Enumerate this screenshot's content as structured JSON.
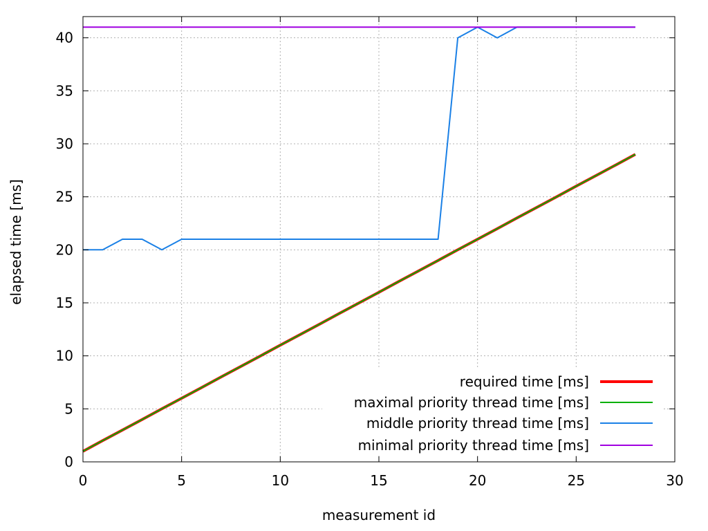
{
  "chart_data": {
    "type": "line",
    "title": "",
    "xlabel": "measurement id",
    "ylabel": "elapsed time [ms]",
    "xlim": [
      0,
      30
    ],
    "ylim": [
      0,
      42
    ],
    "xticks": [
      0,
      5,
      10,
      15,
      20,
      25,
      30
    ],
    "yticks": [
      0,
      5,
      10,
      15,
      20,
      25,
      30,
      35,
      40
    ],
    "grid": true,
    "legend_position": "bottom-right",
    "x": [
      0,
      1,
      2,
      3,
      4,
      5,
      6,
      7,
      8,
      9,
      10,
      11,
      12,
      13,
      14,
      15,
      16,
      17,
      18,
      19,
      20,
      21,
      22,
      23,
      24,
      25,
      26,
      27,
      28
    ],
    "series": [
      {
        "name": "required time [ms]",
        "color": "#ff0000",
        "values": [
          1,
          2,
          3,
          4,
          5,
          6,
          7,
          8,
          9,
          10,
          11,
          12,
          13,
          14,
          15,
          16,
          17,
          18,
          19,
          20,
          21,
          22,
          23,
          24,
          25,
          26,
          27,
          28,
          29
        ]
      },
      {
        "name": "maximal priority thread time [ms]",
        "color": "#00b000",
        "values": [
          1,
          2,
          3,
          4,
          5,
          6,
          7,
          8,
          9,
          10,
          11,
          12,
          13,
          14,
          15,
          16,
          17,
          18,
          19,
          20,
          21,
          22,
          23,
          24,
          25,
          26,
          27,
          28,
          29
        ]
      },
      {
        "name": "middle priority thread time [ms]",
        "color": "#1a80e6",
        "values": [
          20,
          20,
          21,
          21,
          20,
          21,
          21,
          21,
          21,
          21,
          21,
          21,
          21,
          21,
          21,
          21,
          21,
          21,
          21,
          40,
          41,
          40,
          41,
          41,
          41,
          41,
          41,
          41,
          41
        ]
      },
      {
        "name": "minimal priority thread time [ms]",
        "color": "#a000e0",
        "values": [
          41,
          41,
          41,
          41,
          41,
          41,
          41,
          41,
          41,
          41,
          41,
          41,
          41,
          41,
          41,
          41,
          41,
          41,
          41,
          41,
          41,
          41,
          41,
          41,
          41,
          41,
          41,
          41,
          41
        ]
      }
    ]
  }
}
